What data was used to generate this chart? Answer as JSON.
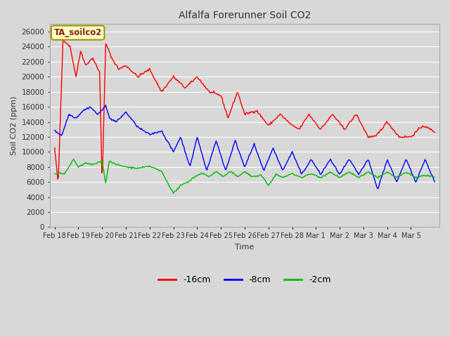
{
  "title": "Alfalfa Forerunner Soil CO2",
  "xlabel": "Time",
  "ylabel": "Soil CO2 (ppm)",
  "ylim": [
    0,
    27000
  ],
  "yticks": [
    0,
    2000,
    4000,
    6000,
    8000,
    10000,
    12000,
    14000,
    16000,
    18000,
    20000,
    22000,
    24000,
    26000
  ],
  "legend_labels": [
    "-16cm",
    "-8cm",
    "-2cm"
  ],
  "line_colors": [
    "#ff0000",
    "#0000ff",
    "#00bb00"
  ],
  "annotation_text": "TA_soilco2",
  "annotation_bg": "#ffffcc",
  "annotation_border": "#999900",
  "background_color": "#d8d8d8",
  "title_color": "#333333",
  "axis_label_color": "#333333",
  "grid_color": "#ffffff",
  "xticklabels": [
    "Feb 18",
    "Feb 19",
    "Feb 20",
    "Feb 21",
    "Feb 22",
    "Feb 23",
    "Feb 24",
    "Feb 25",
    "Feb 26",
    "Feb 27",
    "Feb 28",
    "Mar 1",
    "Mar 2",
    "Mar 3",
    "Mar 4",
    "Mar 5"
  ],
  "n_points": 500
}
